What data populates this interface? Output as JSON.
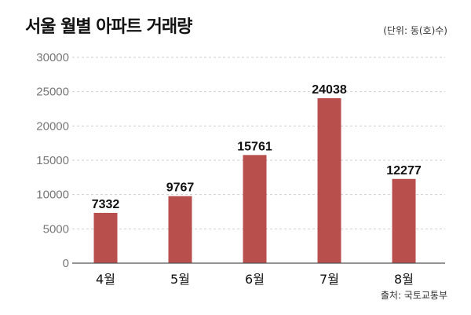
{
  "chart_data": {
    "type": "bar",
    "title": "서울 월별 아파트 거래량",
    "unit": "(단위: 동(호)수)",
    "source": "출처: 국토교통부",
    "categories": [
      "4월",
      "5월",
      "6월",
      "7월",
      "8월"
    ],
    "values": [
      7332,
      9767,
      15761,
      24038,
      12277
    ],
    "data_labels": [
      "7332",
      "9767",
      "15761",
      "24038",
      "12277"
    ],
    "yticks": [
      0,
      5000,
      10000,
      15000,
      20000,
      25000,
      30000
    ],
    "ytick_labels": [
      "0",
      "5000",
      "10000",
      "15000",
      "20000",
      "25000",
      "30000"
    ],
    "ylim": [
      0,
      30000
    ],
    "xlabel": "",
    "ylabel": "",
    "grid": true,
    "bar_color": "#b84f4c"
  }
}
